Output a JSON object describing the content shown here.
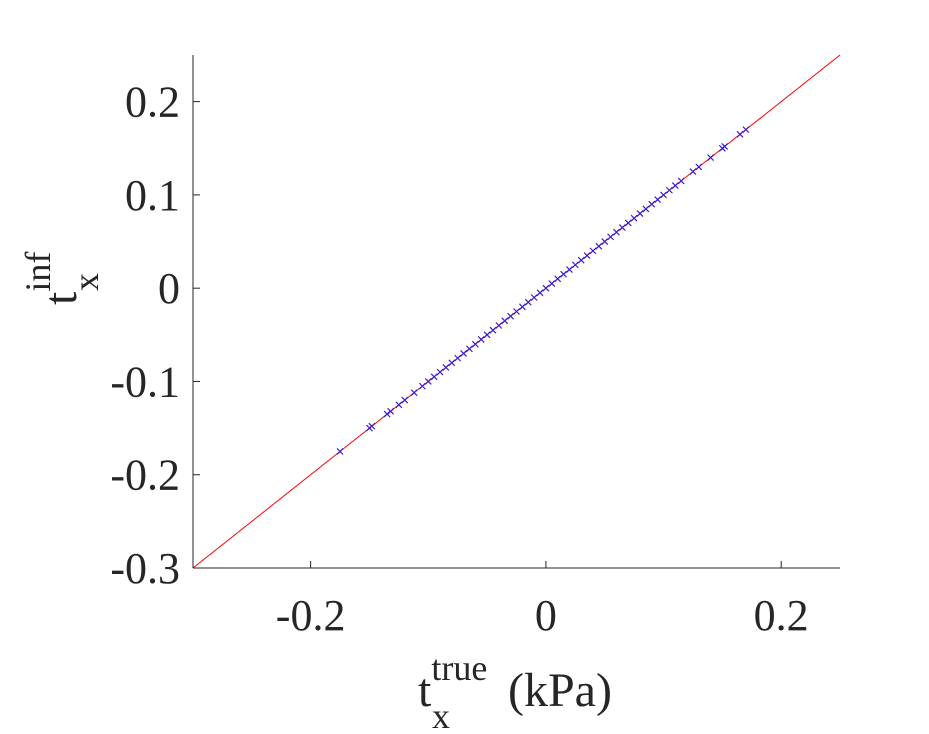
{
  "chart_data": {
    "type": "scatter",
    "title": "",
    "xlabel": {
      "base": "t",
      "superscript": "true",
      "subscript": "x",
      "unit": "(kPa)"
    },
    "ylabel": {
      "base": "t",
      "superscript": "inf",
      "subscript": "x"
    },
    "xlim": [
      -0.3,
      0.25
    ],
    "ylim": [
      -0.3,
      0.25
    ],
    "xticks": [
      -0.2,
      0,
      0.2
    ],
    "xtick_labels": [
      "-0.2",
      "0",
      "0.2"
    ],
    "yticks": [
      -0.3,
      -0.2,
      -0.1,
      0,
      0.1,
      0.2
    ],
    "ytick_labels": [
      "-0.3",
      "-0.2",
      "-0.1",
      "0",
      "0.1",
      "0.2"
    ],
    "grid": false,
    "reference_line": {
      "description": "y = x",
      "color": "#ff0000",
      "x": [
        -0.3,
        0.25
      ],
      "y": [
        -0.3,
        0.25
      ]
    },
    "marker_color": "#3a1fd0",
    "series": [
      {
        "marker": "x",
        "points": [
          [
            -0.175,
            -0.175
          ],
          [
            -0.15,
            -0.15
          ],
          [
            -0.148,
            -0.148
          ],
          [
            -0.135,
            -0.135
          ],
          [
            -0.132,
            -0.132
          ],
          [
            -0.125,
            -0.125
          ],
          [
            -0.12,
            -0.12
          ],
          [
            -0.112,
            -0.112
          ],
          [
            -0.105,
            -0.105
          ],
          [
            -0.1,
            -0.1
          ],
          [
            -0.095,
            -0.095
          ],
          [
            -0.09,
            -0.09
          ],
          [
            -0.085,
            -0.085
          ],
          [
            -0.08,
            -0.08
          ],
          [
            -0.075,
            -0.075
          ],
          [
            -0.07,
            -0.07
          ],
          [
            -0.065,
            -0.065
          ],
          [
            -0.06,
            -0.06
          ],
          [
            -0.055,
            -0.055
          ],
          [
            -0.05,
            -0.05
          ],
          [
            -0.045,
            -0.045
          ],
          [
            -0.04,
            -0.04
          ],
          [
            -0.035,
            -0.035
          ],
          [
            -0.03,
            -0.03
          ],
          [
            -0.025,
            -0.025
          ],
          [
            -0.02,
            -0.02
          ],
          [
            -0.015,
            -0.015
          ],
          [
            -0.01,
            -0.01
          ],
          [
            -0.005,
            -0.005
          ],
          [
            0.0,
            0.0
          ],
          [
            0.005,
            0.005
          ],
          [
            0.01,
            0.01
          ],
          [
            0.015,
            0.015
          ],
          [
            0.02,
            0.02
          ],
          [
            0.025,
            0.025
          ],
          [
            0.03,
            0.03
          ],
          [
            0.035,
            0.035
          ],
          [
            0.04,
            0.04
          ],
          [
            0.045,
            0.045
          ],
          [
            0.05,
            0.05
          ],
          [
            0.055,
            0.055
          ],
          [
            0.06,
            0.06
          ],
          [
            0.065,
            0.065
          ],
          [
            0.07,
            0.07
          ],
          [
            0.075,
            0.075
          ],
          [
            0.08,
            0.08
          ],
          [
            0.085,
            0.085
          ],
          [
            0.09,
            0.09
          ],
          [
            0.095,
            0.095
          ],
          [
            0.1,
            0.1
          ],
          [
            0.105,
            0.105
          ],
          [
            0.11,
            0.11
          ],
          [
            0.115,
            0.115
          ],
          [
            0.125,
            0.125
          ],
          [
            0.13,
            0.13
          ],
          [
            0.14,
            0.14
          ],
          [
            0.15,
            0.15
          ],
          [
            0.152,
            0.152
          ],
          [
            0.165,
            0.165
          ],
          [
            0.17,
            0.17
          ]
        ]
      }
    ]
  }
}
